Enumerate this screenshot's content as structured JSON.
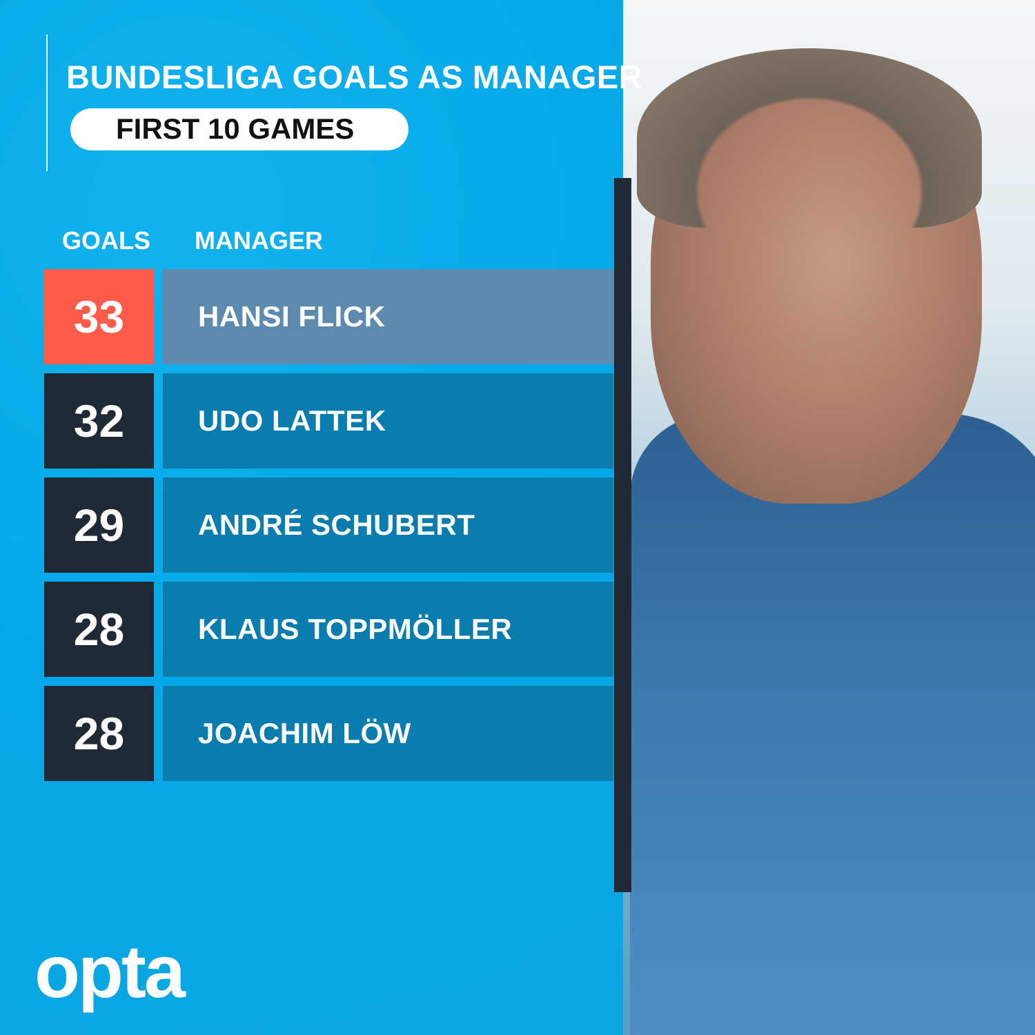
{
  "header": {
    "title": "BUNDESLIGA GOALS AS MANAGER",
    "subtitle": "FIRST 10 GAMES"
  },
  "columns": {
    "goals": "GOALS",
    "manager": "MANAGER"
  },
  "rows": [
    {
      "goals": "33",
      "manager": "HANSI FLICK"
    },
    {
      "goals": "32",
      "manager": "UDO LATTEK"
    },
    {
      "goals": "29",
      "manager": "ANDRÉ SCHUBERT"
    },
    {
      "goals": "28",
      "manager": "KLAUS TOPPMÖLLER"
    },
    {
      "goals": "28",
      "manager": "JOACHIM LÖW"
    }
  ],
  "brand": {
    "logo": "opta"
  },
  "colors": {
    "background": "#05a9e8",
    "highlight_goals": "#fd5a4a",
    "highlight_name": "#5d8bb0",
    "goals_box": "#1f2a36",
    "name_box": "#0a7cae"
  }
}
